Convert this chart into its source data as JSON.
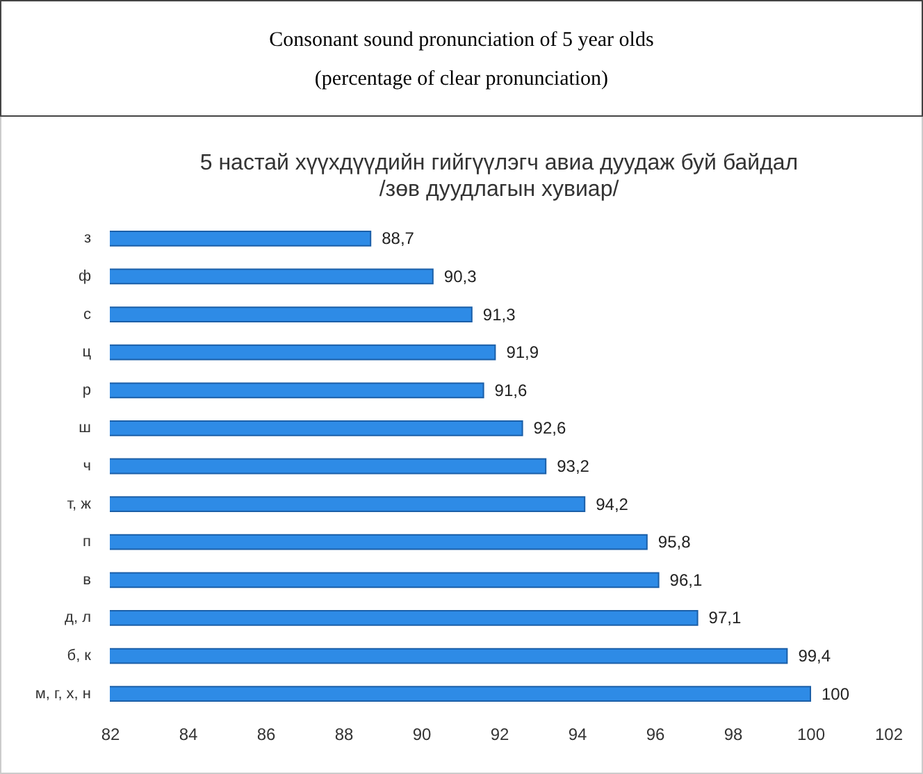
{
  "chart_data": {
    "type": "bar",
    "orientation": "horizontal",
    "title": "5 настай хүүхдүүдийн  гийгүүлэгч  авиа  дуудаж  буй  байдал",
    "subtitle": "/зөв  дуудлагын  хувиар/",
    "annotations": [
      "Consonant sound pronunciation of 5 year olds",
      "(percentage of clear pronunciation)"
    ],
    "categories": [
      "з",
      "ф",
      "с",
      "ц",
      "р",
      "ш",
      "ч",
      "т, ж",
      "п",
      "в",
      "д, л",
      "б, к",
      "м, г, х, н"
    ],
    "values": [
      88.7,
      90.3,
      91.3,
      91.9,
      91.6,
      92.6,
      93.2,
      94.2,
      95.8,
      96.1,
      97.1,
      99.4,
      100
    ],
    "value_labels": [
      "88,7",
      "90,3",
      "91,3",
      "91,9",
      "91,6",
      "92,6",
      "93,2",
      "94,2",
      "95,8",
      "96,1",
      "97,1",
      "99,4",
      "100"
    ],
    "color": "#2e8be6",
    "xlim": [
      82,
      102
    ],
    "xticks": [
      82,
      84,
      86,
      88,
      90,
      92,
      94,
      96,
      98,
      100,
      102
    ],
    "grid": false
  }
}
